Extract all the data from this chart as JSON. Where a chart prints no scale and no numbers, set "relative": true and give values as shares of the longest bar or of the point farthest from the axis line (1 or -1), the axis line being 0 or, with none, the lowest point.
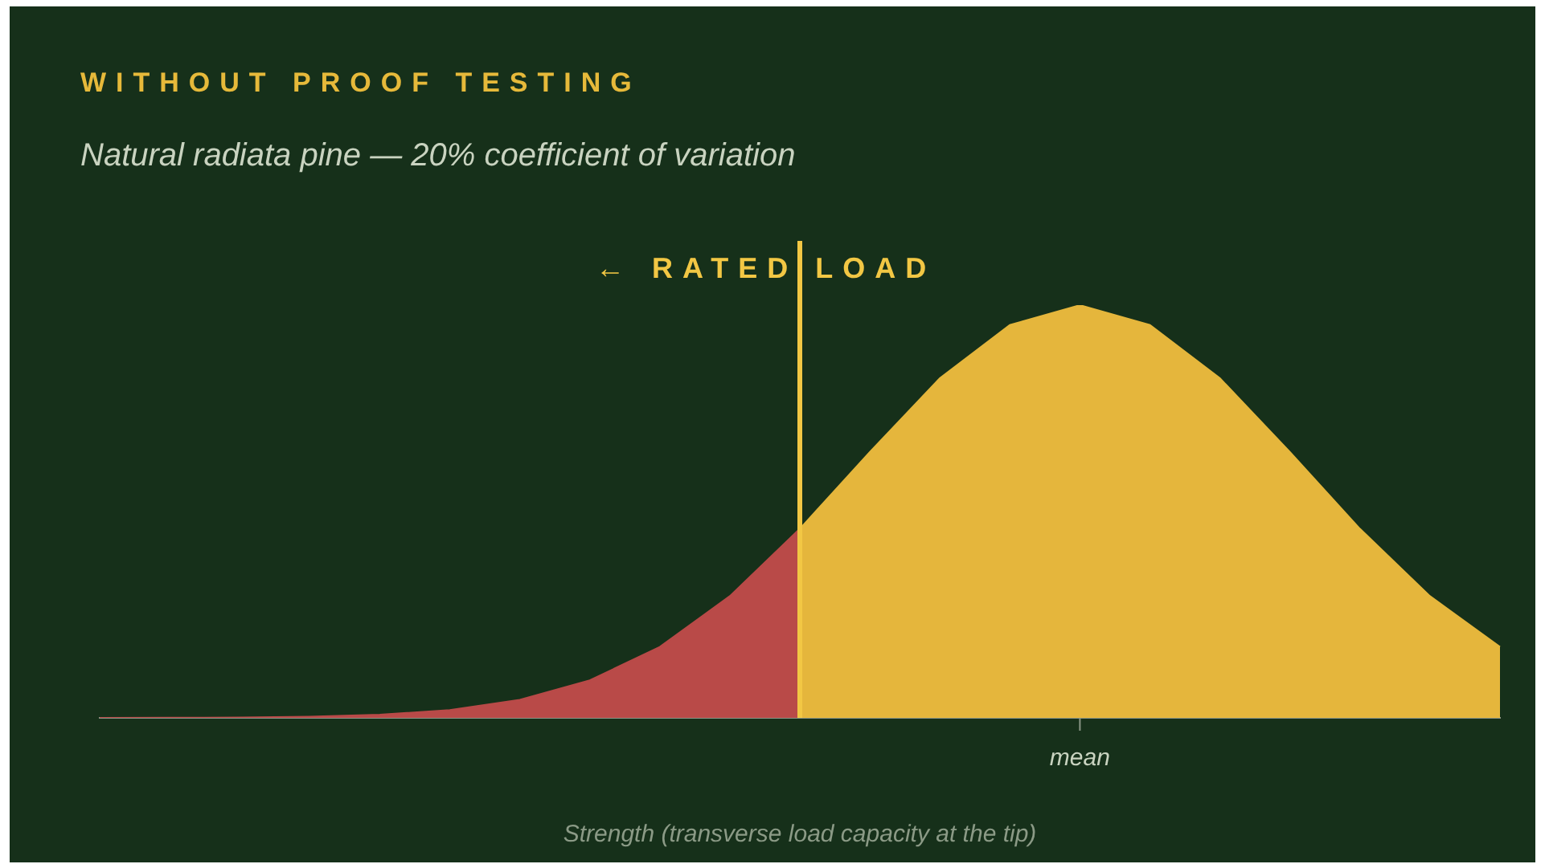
{
  "chart_data": {
    "type": "area",
    "title": "WITHOUT PROOF TESTING",
    "subtitle": "Natural radiata pine — 20% coefficient of variation",
    "xlabel": "Strength (transverse load capacity at the tip)",
    "relative": true,
    "marker": "none",
    "legend": false,
    "annotations": [
      "mean"
    ],
    "categories": [
      null,
      null,
      null,
      null,
      null,
      null,
      null,
      null,
      null,
      null,
      null,
      null,
      null,
      null,
      null,
      null,
      null,
      null,
      null,
      null,
      null
    ],
    "series": [
      {
        "color": "#b94a48",
        "values": [
          0.0001,
          0.0003,
          0.0009,
          0.0027,
          0.0076,
          0.019,
          0.044,
          0.091,
          0.172,
          0.295,
          0.458,
          null,
          null,
          null,
          null,
          null,
          null,
          null,
          null,
          null,
          null
        ]
      },
      {
        "color": "#e5b63c",
        "values": [
          null,
          null,
          null,
          null,
          null,
          null,
          null,
          null,
          null,
          null,
          0.458,
          0.644,
          0.823,
          0.952,
          1,
          0.952,
          0.823,
          0.644,
          0.458,
          0.295,
          0.172
        ]
      }
    ],
    "ref_lines": [
      {
        "axis": "x",
        "value": null,
        "label": "← RATED LOAD",
        "color": "#f2c744"
      }
    ]
  }
}
